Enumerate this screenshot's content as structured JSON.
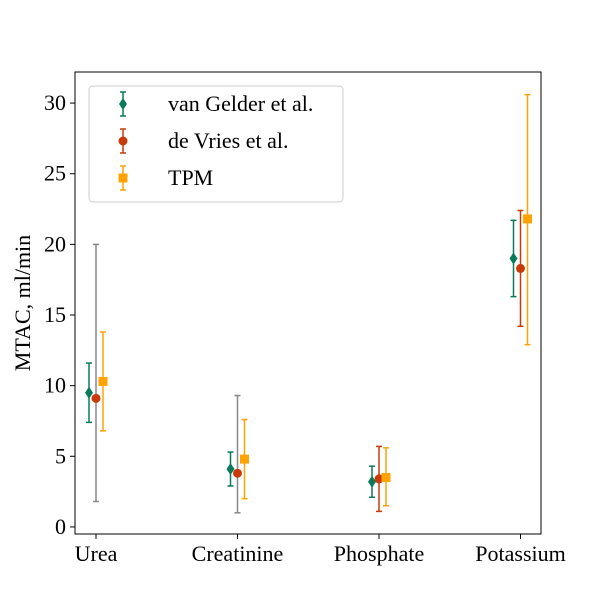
{
  "chart_data": {
    "type": "scatter",
    "categories": [
      "Urea",
      "Creatinine",
      "Phosphate",
      "Potassium"
    ],
    "xlabel": "",
    "ylabel": "MTAC, ml/min",
    "ylim": [
      -0.5,
      32.2
    ],
    "yticks": [
      0,
      5,
      10,
      15,
      20,
      25,
      30
    ],
    "legend_position": "top-left",
    "grid": false,
    "series": [
      {
        "name": "van Gelder et al.",
        "marker": "diamond",
        "color": "#0b7a5b",
        "values": [
          9.5,
          4.1,
          3.2,
          19.0
        ],
        "lower": [
          7.4,
          2.9,
          2.1,
          16.3
        ],
        "upper": [
          11.6,
          5.3,
          4.3,
          21.7
        ]
      },
      {
        "name": "de Vries et al.",
        "marker": "circle",
        "color": "#c93a0b",
        "values": [
          9.1,
          3.8,
          3.4,
          18.3
        ],
        "lower": [
          null,
          null,
          1.1,
          14.2
        ],
        "upper": [
          null,
          null,
          5.7,
          22.4
        ]
      },
      {
        "name": "TPM",
        "marker": "square",
        "color": "#ffa305",
        "values": [
          10.3,
          4.8,
          3.5,
          21.8
        ],
        "lower": [
          6.8,
          2.0,
          1.5,
          12.9
        ],
        "upper": [
          13.8,
          7.6,
          5.6,
          30.6
        ]
      }
    ],
    "extra_errorbars": {
      "color": "#888888",
      "categories": [
        "Urea",
        "Creatinine"
      ],
      "lower": [
        1.8,
        1.0
      ],
      "upper": [
        20.0,
        9.3
      ]
    }
  }
}
